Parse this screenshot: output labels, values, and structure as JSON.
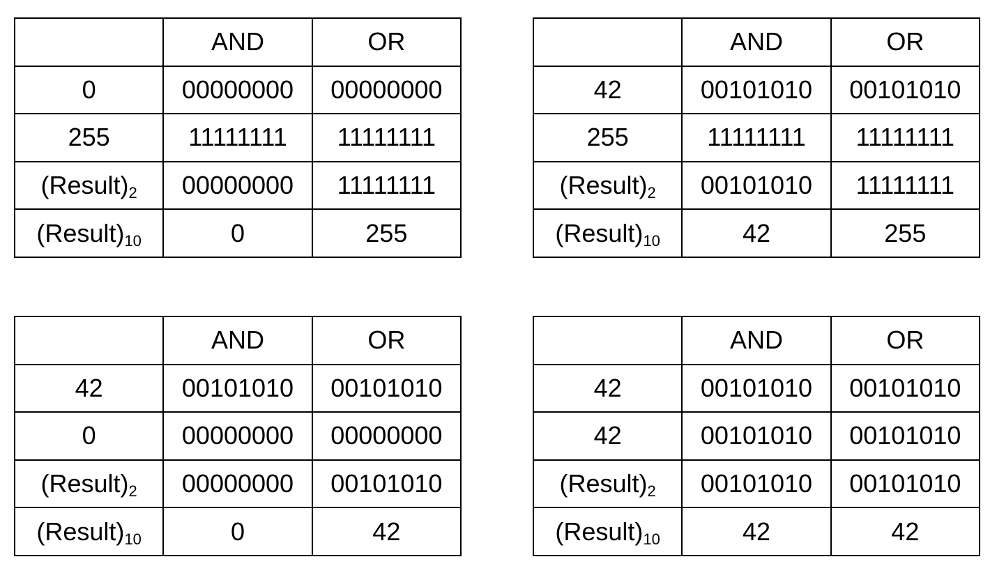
{
  "tables": [
    {
      "header": [
        "",
        "AND",
        "OR"
      ],
      "rows": [
        {
          "label": "0",
          "and": "00000000",
          "or": "00000000"
        },
        {
          "label": "255",
          "and": "11111111",
          "or": "11111111"
        }
      ],
      "result_label": "(Result)",
      "result_bin_sub": "2",
      "result_bin": {
        "and": "00000000",
        "or": "11111111"
      },
      "result_dec_sub": "10",
      "result_dec": {
        "and": "0",
        "or": "255"
      }
    },
    {
      "header": [
        "",
        "AND",
        "OR"
      ],
      "rows": [
        {
          "label": "42",
          "and": "00101010",
          "or": "00101010"
        },
        {
          "label": "255",
          "and": "11111111",
          "or": "11111111"
        }
      ],
      "result_label": "(Result)",
      "result_bin_sub": "2",
      "result_bin": {
        "and": "00101010",
        "or": "11111111"
      },
      "result_dec_sub": "10",
      "result_dec": {
        "and": "42",
        "or": "255"
      }
    },
    {
      "header": [
        "",
        "AND",
        "OR"
      ],
      "rows": [
        {
          "label": "42",
          "and": "00101010",
          "or": "00101010"
        },
        {
          "label": "0",
          "and": "00000000",
          "or": "00000000"
        }
      ],
      "result_label": "(Result)",
      "result_bin_sub": "2",
      "result_bin": {
        "and": "00000000",
        "or": "00101010"
      },
      "result_dec_sub": "10",
      "result_dec": {
        "and": "0",
        "or": "42"
      }
    },
    {
      "header": [
        "",
        "AND",
        "OR"
      ],
      "rows": [
        {
          "label": "42",
          "and": "00101010",
          "or": "00101010"
        },
        {
          "label": "42",
          "and": "00101010",
          "or": "00101010"
        }
      ],
      "result_label": "(Result)",
      "result_bin_sub": "2",
      "result_bin": {
        "and": "00101010",
        "or": "00101010"
      },
      "result_dec_sub": "10",
      "result_dec": {
        "and": "42",
        "or": "42"
      }
    }
  ]
}
